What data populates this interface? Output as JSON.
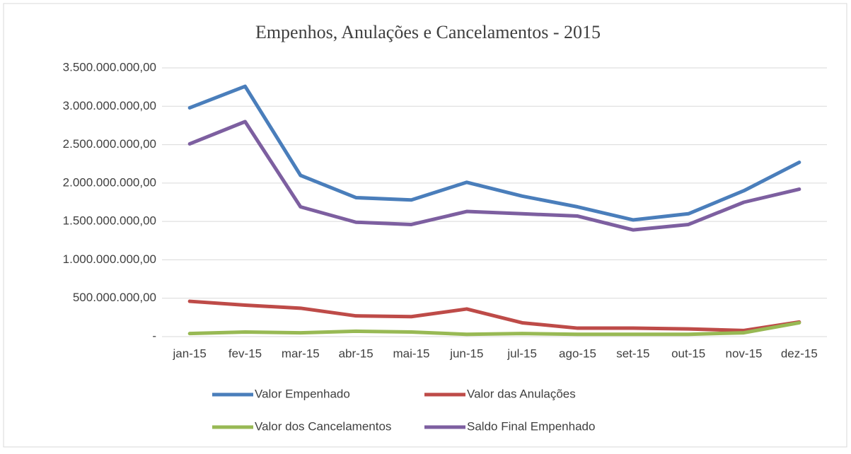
{
  "chart_data": {
    "type": "line",
    "title": "Empenhos, Anulações e Cancelamentos - 2015",
    "categories": [
      "jan-15",
      "fev-15",
      "mar-15",
      "abr-15",
      "mai-15",
      "jun-15",
      "jul-15",
      "ago-15",
      "set-15",
      "out-15",
      "nov-15",
      "dez-15"
    ],
    "series": [
      {
        "name": "Valor Empenhado",
        "color": "#4a7ebb",
        "values": [
          2980000000,
          3260000000,
          2100000000,
          1810000000,
          1780000000,
          2010000000,
          1830000000,
          1690000000,
          1520000000,
          1600000000,
          1900000000,
          2270000000
        ]
      },
      {
        "name": "Valor das Anulações",
        "color": "#be4b48",
        "values": [
          460000000,
          410000000,
          370000000,
          270000000,
          260000000,
          360000000,
          180000000,
          110000000,
          110000000,
          100000000,
          80000000,
          190000000
        ]
      },
      {
        "name": "Valor dos Cancelamentos",
        "color": "#98b954",
        "values": [
          40000000,
          60000000,
          50000000,
          70000000,
          60000000,
          30000000,
          40000000,
          30000000,
          30000000,
          30000000,
          50000000,
          180000000
        ]
      },
      {
        "name": "Saldo Final Empenhado",
        "color": "#7d5fa0",
        "values": [
          2510000000,
          2800000000,
          1690000000,
          1490000000,
          1460000000,
          1630000000,
          1600000000,
          1570000000,
          1390000000,
          1460000000,
          1750000000,
          1920000000
        ]
      }
    ],
    "ylim": [
      0,
      3500000000
    ],
    "yticks": [
      {
        "value": 0,
        "label": "-"
      },
      {
        "value": 500000000,
        "label": "500.000.000,00"
      },
      {
        "value": 1000000000,
        "label": "1.000.000.000,00"
      },
      {
        "value": 1500000000,
        "label": "1.500.000.000,00"
      },
      {
        "value": 2000000000,
        "label": "2.000.000.000,00"
      },
      {
        "value": 2500000000,
        "label": "2.500.000.000,00"
      },
      {
        "value": 3000000000,
        "label": "3.000.000.000,00"
      },
      {
        "value": 3500000000,
        "label": "3.500.000.000,00"
      }
    ],
    "grid": true
  }
}
